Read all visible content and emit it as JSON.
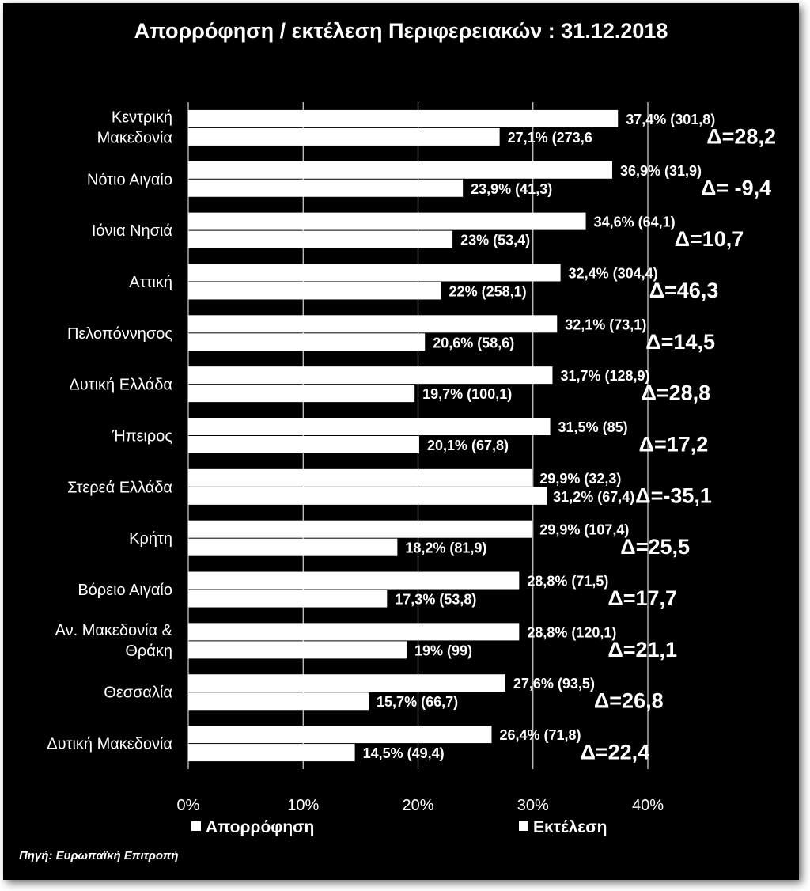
{
  "chart_data": {
    "type": "bar",
    "orientation": "horizontal",
    "title": "Απορρόφηση / εκτέλεση Περιφερειακών : 31.12.2018",
    "categories": [
      [
        "Κεντρική",
        "Μακεδονία"
      ],
      [
        "Νότιο Αιγαίο"
      ],
      [
        "Ιόνια Νησιά"
      ],
      [
        "Αττική"
      ],
      [
        "Πελοπόννησος"
      ],
      [
        "Δυτική Ελλάδα"
      ],
      [
        "Ήπειρος"
      ],
      [
        "Στερεά Ελλάδα"
      ],
      [
        "Κρήτη"
      ],
      [
        "Βόρειο Αιγαίο"
      ],
      [
        "Αν. Μακεδονία &",
        "Θράκη"
      ],
      [
        "Θεσσαλία"
      ],
      [
        "Δυτική Μακεδονία"
      ]
    ],
    "series": [
      {
        "name": "Απορρόφηση",
        "values": [
          37.4,
          36.9,
          34.6,
          32.4,
          32.1,
          31.7,
          31.5,
          29.9,
          29.9,
          28.8,
          28.8,
          27.6,
          26.4
        ],
        "labels": [
          "37,4% (301,8)",
          "36,9% (31,9)",
          "34,6% (64,1)",
          "32,4% (304,4)",
          "32,1% (73,1)",
          "31,7% (128,9)",
          "31,5% (85)",
          "29,9% (32,3)",
          "29,9% (107,4)",
          "28,8% (71,5)",
          "28,8% (120,1)",
          "27,6% (93,5)",
          "26,4% (71,8)"
        ]
      },
      {
        "name": "Εκτέλεση",
        "values": [
          27.1,
          23.9,
          23.0,
          22.0,
          20.6,
          19.7,
          20.1,
          31.2,
          18.2,
          17.3,
          19.0,
          15.7,
          14.5
        ],
        "labels": [
          "27,1% (273,6",
          "23,9% (41,3)",
          "23% (53,4)",
          "22% (258,1)",
          "20,6% (58,6)",
          "19,7% (100,1)",
          "20,1% (67,8)",
          "31,2% (67,4)",
          "18,2% (81,9)",
          "17,3% (53,8)",
          "19% (99)",
          "15,7% (66,7)",
          "14,5% (49,4)"
        ]
      }
    ],
    "deltas": [
      "Δ=28,2",
      "Δ= -9,4",
      "Δ=10,7",
      "Δ=46,3",
      "Δ=14,5",
      "Δ=28,8",
      "Δ=17,2",
      "Δ=-35,1",
      "Δ=25,5",
      "Δ=17,7",
      "Δ=21,1",
      "Δ=26,8",
      "Δ=22,4"
    ],
    "xlim": [
      0,
      40
    ],
    "xticks": [
      0,
      10,
      20,
      30,
      40
    ],
    "xtick_labels": [
      "0%",
      "10%",
      "20%",
      "30%",
      "40%"
    ],
    "grid": "vertical",
    "legend_position": "bottom",
    "bar_color": "#ffffff",
    "background_color": "#000000"
  },
  "source_note": "Πηγή: Ευρωπαϊκή Επιτροπή"
}
